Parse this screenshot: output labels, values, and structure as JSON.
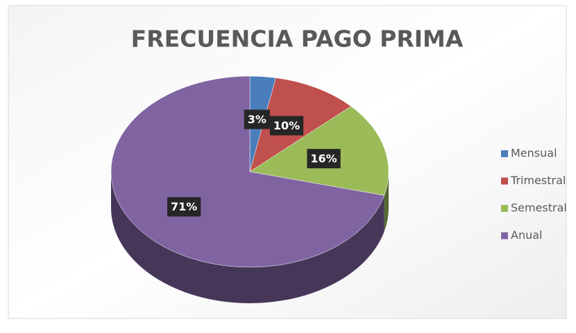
{
  "chart_data": {
    "type": "pie",
    "title": "FRECUENCIA  PAGO PRIMA",
    "categories": [
      "Mensual",
      "Trimestral",
      "Semestral",
      "Anual"
    ],
    "values": [
      3,
      10,
      16,
      71
    ],
    "value_labels": [
      "3%",
      "10%",
      "16%",
      "71%"
    ],
    "colors": [
      "#4a7ebb",
      "#c0504d",
      "#9bbb59",
      "#8064a2"
    ],
    "legend": "right"
  }
}
